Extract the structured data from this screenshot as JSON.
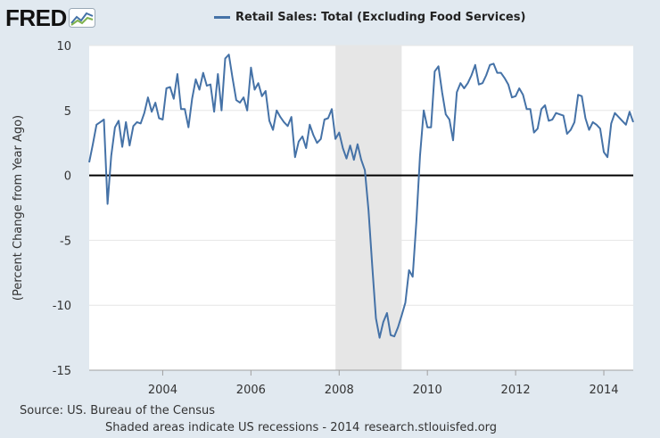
{
  "logo": {
    "text": "FRED",
    "icon": "fred-chart-icon"
  },
  "legend": {
    "label": "Retail Sales: Total (Excluding Food Services)"
  },
  "footer": {
    "source": "Source: US. Bureau of the Census",
    "note": "Shaded areas indicate US recessions - 2014",
    "site": "research.stlouisfed.org"
  },
  "colors": {
    "series": "#4572a7",
    "background": "#e1e9f0",
    "plot": "#ffffff",
    "recession": "#e6e6e6",
    "zero_line": "#000000"
  },
  "chart_data": {
    "type": "line",
    "title": "",
    "xlabel": "",
    "ylabel": "(Percent Change from Year Ago)",
    "xlim": [
      "2002-05",
      "2014-09"
    ],
    "ylim": [
      -15,
      10
    ],
    "yticks": [
      10,
      5,
      0,
      -5,
      -10,
      -15
    ],
    "xtick_labels": [
      "2004",
      "2006",
      "2008",
      "2010",
      "2012",
      "2014"
    ],
    "xtick_years": [
      2004,
      2006,
      2008,
      2010,
      2012,
      2014
    ],
    "grid": "horizontal",
    "legend_position": "top",
    "recessions": [
      {
        "start": "2007-12",
        "end": "2009-06"
      }
    ],
    "series": [
      {
        "name": "Retail Sales: Total (Excluding Food Services)",
        "start": "2002-05",
        "frequency": "monthly",
        "values": [
          1.0,
          2.4,
          3.9,
          4.1,
          4.3,
          -2.2,
          1.5,
          3.7,
          4.2,
          2.2,
          4.1,
          2.3,
          3.8,
          4.1,
          4.0,
          4.8,
          6.0,
          4.9,
          5.6,
          4.4,
          4.3,
          6.7,
          6.8,
          5.9,
          7.8,
          5.1,
          5.1,
          3.7,
          5.9,
          7.4,
          6.6,
          7.9,
          6.9,
          7.0,
          4.9,
          7.8,
          5.0,
          9.0,
          9.3,
          7.5,
          5.8,
          5.6,
          6.0,
          5.0,
          8.3,
          6.6,
          7.1,
          6.1,
          6.5,
          4.2,
          3.5,
          5.0,
          4.5,
          4.1,
          3.8,
          4.5,
          1.4,
          2.6,
          3.0,
          2.1,
          3.9,
          3.1,
          2.5,
          2.8,
          4.3,
          4.4,
          5.1,
          2.8,
          3.3,
          2.1,
          1.3,
          2.3,
          1.2,
          2.4,
          1.2,
          0.4,
          -2.7,
          -7.0,
          -11.0,
          -12.5,
          -11.3,
          -10.6,
          -12.3,
          -12.4,
          -11.7,
          -10.8,
          -9.8,
          -7.3,
          -7.8,
          -3.6,
          1.5,
          5.0,
          3.7,
          3.7,
          8.0,
          8.4,
          6.4,
          4.7,
          4.3,
          2.7,
          6.4,
          7.1,
          6.7,
          7.1,
          7.7,
          8.5,
          7.0,
          7.1,
          7.7,
          8.5,
          8.6,
          7.9,
          7.9,
          7.5,
          7.0,
          6.0,
          6.1,
          6.7,
          6.2,
          5.1,
          5.1,
          3.3,
          3.6,
          5.1,
          5.4,
          4.2,
          4.3,
          4.8,
          4.7,
          4.6,
          3.2,
          3.5,
          4.1,
          6.2,
          6.1,
          4.4,
          3.5,
          4.1,
          3.9,
          3.6,
          1.8,
          1.4,
          4.0,
          4.8,
          4.5,
          4.2,
          3.9,
          4.9,
          4.1
        ]
      }
    ]
  }
}
